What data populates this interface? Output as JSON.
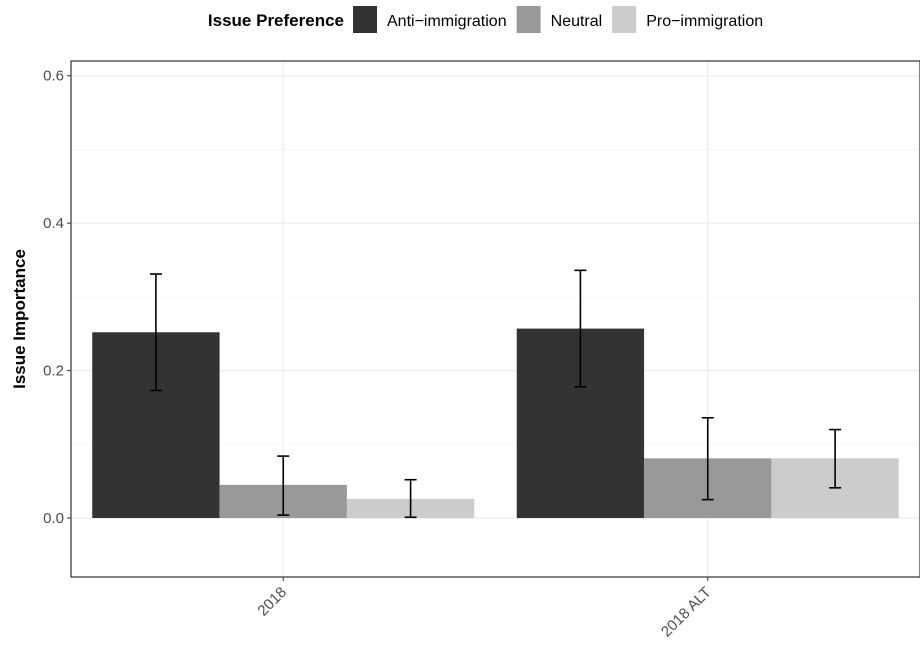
{
  "chart_data": {
    "type": "bar",
    "title": "",
    "xlabel": "",
    "ylabel": "Issue Importance",
    "ylim": [
      -0.08,
      0.62
    ],
    "yticks": [
      0.0,
      0.2,
      0.4,
      0.6
    ],
    "ytick_labels": [
      "0.0",
      "0.2",
      "0.4",
      "0.6"
    ],
    "grid": true,
    "legend_title": "Issue Preference",
    "legend_position": "top",
    "categories": [
      "2018",
      "2018 ALT"
    ],
    "series": [
      {
        "name": "Anti−immigration",
        "color": "#333333",
        "values": [
          0.252,
          0.257
        ],
        "err_low": [
          0.173,
          0.178
        ],
        "err_high": [
          0.331,
          0.336
        ]
      },
      {
        "name": "Neutral",
        "color": "#999999",
        "values": [
          0.045,
          0.081
        ],
        "err_low": [
          0.004,
          0.025
        ],
        "err_high": [
          0.084,
          0.136
        ]
      },
      {
        "name": "Pro−immigration",
        "color": "#cccccc",
        "values": [
          0.026,
          0.081
        ],
        "err_low": [
          0.001,
          0.041
        ],
        "err_high": [
          0.052,
          0.12
        ]
      }
    ]
  }
}
